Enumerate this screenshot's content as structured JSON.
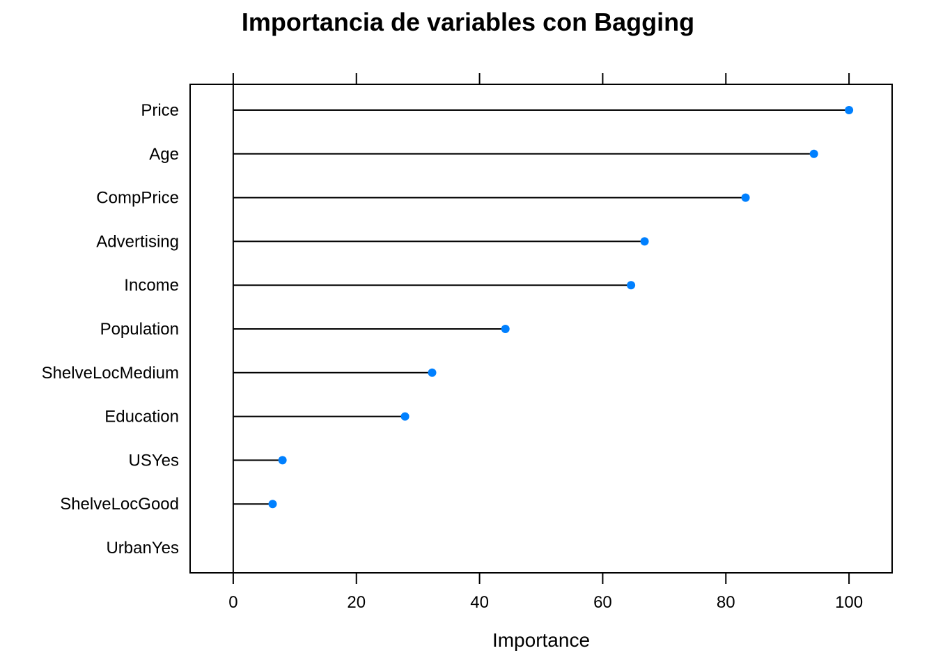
{
  "chart_data": {
    "type": "dotplot",
    "title": "Importancia de variables con Bagging",
    "xlabel": "Importance",
    "ylabel": "",
    "xlim": [
      -7,
      107
    ],
    "xticks": [
      0,
      20,
      40,
      60,
      80,
      100
    ],
    "tick_labels": [
      "0",
      "20",
      "40",
      "60",
      "80",
      "100"
    ],
    "grid": false,
    "legend": "none",
    "categories": [
      "Price",
      "Age",
      "CompPrice",
      "Advertising",
      "Income",
      "Population",
      "ShelveLocMedium",
      "Education",
      "USYes",
      "ShelveLocGood",
      "UrbanYes"
    ],
    "values": [
      100,
      94.3,
      83.2,
      66.8,
      64.6,
      44.2,
      32.3,
      27.9,
      8.0,
      6.4,
      0
    ],
    "colors": {
      "point": "#0080ff",
      "line": "#000000",
      "frame": "#000000"
    }
  }
}
